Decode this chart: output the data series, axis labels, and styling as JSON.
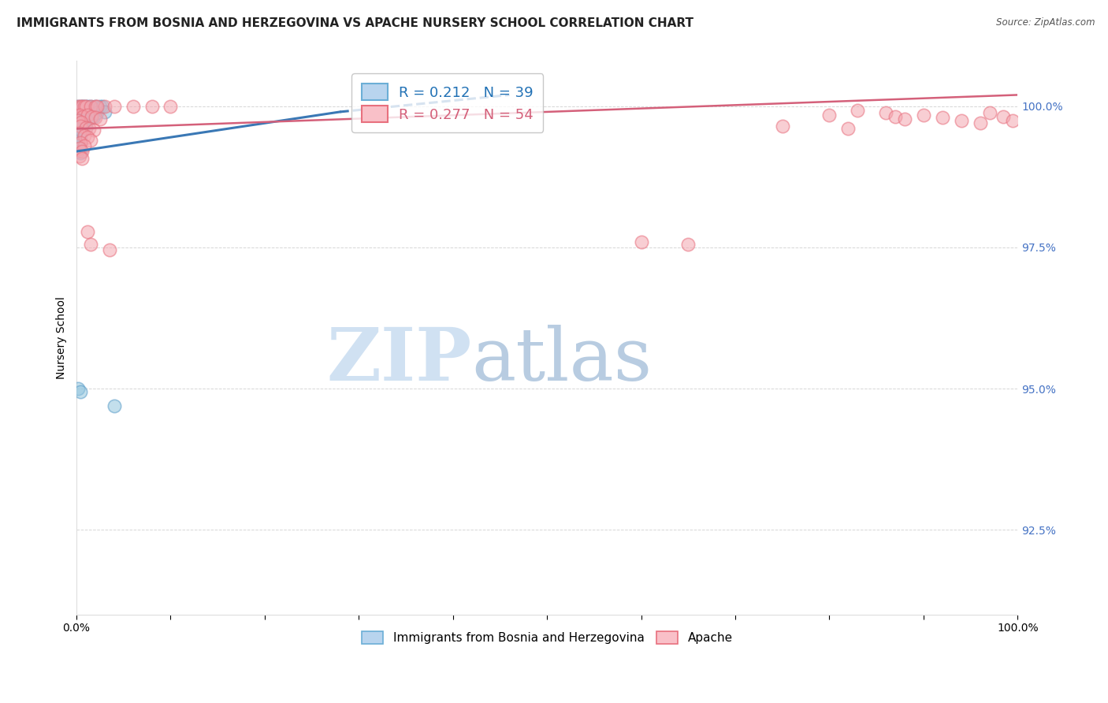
{
  "title": "IMMIGRANTS FROM BOSNIA AND HERZEGOVINA VS APACHE NURSERY SCHOOL CORRELATION CHART",
  "source": "Source: ZipAtlas.com",
  "ylabel": "Nursery School",
  "ytick_labels": [
    "100.0%",
    "97.5%",
    "95.0%",
    "92.5%"
  ],
  "ytick_values": [
    1.0,
    0.975,
    0.95,
    0.925
  ],
  "xlim": [
    0.0,
    1.0
  ],
  "ylim": [
    0.91,
    1.008
  ],
  "legend_blue_r": "0.212",
  "legend_blue_n": "39",
  "legend_pink_r": "0.277",
  "legend_pink_n": "54",
  "blue_color": "#92c5de",
  "pink_color": "#f4a6b0",
  "blue_edge_color": "#5b9dc9",
  "pink_edge_color": "#e8707e",
  "blue_line_color": "#3a78b5",
  "pink_line_color": "#d4607a",
  "blue_line_solid": [
    [
      0.0,
      0.992
    ],
    [
      0.28,
      0.999
    ]
  ],
  "blue_line_dash": [
    [
      0.28,
      0.999
    ],
    [
      0.46,
      1.002
    ]
  ],
  "pink_line": [
    [
      0.0,
      0.996
    ],
    [
      1.0,
      1.002
    ]
  ],
  "blue_scatter": [
    [
      0.002,
      1.0
    ],
    [
      0.005,
      1.0
    ],
    [
      0.007,
      1.0
    ],
    [
      0.009,
      1.0
    ],
    [
      0.012,
      1.0
    ],
    [
      0.015,
      1.0
    ],
    [
      0.02,
      1.0
    ],
    [
      0.025,
      1.0
    ],
    [
      0.028,
      1.0
    ],
    [
      0.005,
      0.9985
    ],
    [
      0.008,
      0.9982
    ],
    [
      0.01,
      0.9985
    ],
    [
      0.013,
      0.9978
    ],
    [
      0.016,
      0.998
    ],
    [
      0.018,
      0.9982
    ],
    [
      0.002,
      0.9975
    ],
    [
      0.005,
      0.9972
    ],
    [
      0.007,
      0.9975
    ],
    [
      0.002,
      0.9968
    ],
    [
      0.004,
      0.9965
    ],
    [
      0.006,
      0.9968
    ],
    [
      0.008,
      0.9965
    ],
    [
      0.01,
      0.9962
    ],
    [
      0.002,
      0.9958
    ],
    [
      0.004,
      0.9955
    ],
    [
      0.007,
      0.9958
    ],
    [
      0.002,
      0.9948
    ],
    [
      0.004,
      0.9945
    ],
    [
      0.002,
      0.9938
    ],
    [
      0.004,
      0.9935
    ],
    [
      0.002,
      0.992
    ],
    [
      0.004,
      0.9918
    ],
    [
      0.002,
      0.95
    ],
    [
      0.004,
      0.9495
    ],
    [
      0.04,
      0.947
    ],
    [
      0.002,
      0.996
    ],
    [
      0.006,
      0.9955
    ],
    [
      0.022,
      0.9988
    ],
    [
      0.03,
      0.999
    ]
  ],
  "pink_scatter": [
    [
      0.002,
      1.0
    ],
    [
      0.004,
      1.0
    ],
    [
      0.006,
      1.0
    ],
    [
      0.008,
      1.0
    ],
    [
      0.01,
      1.0
    ],
    [
      0.015,
      1.0
    ],
    [
      0.02,
      1.0
    ],
    [
      0.03,
      1.0
    ],
    [
      0.04,
      1.0
    ],
    [
      0.06,
      1.0
    ],
    [
      0.08,
      1.0
    ],
    [
      0.1,
      1.0
    ],
    [
      0.022,
      1.0
    ],
    [
      0.003,
      0.9985
    ],
    [
      0.007,
      0.9982
    ],
    [
      0.012,
      0.9985
    ],
    [
      0.016,
      0.9982
    ],
    [
      0.02,
      0.998
    ],
    [
      0.002,
      0.9975
    ],
    [
      0.005,
      0.9972
    ],
    [
      0.025,
      0.9978
    ],
    [
      0.004,
      0.9965
    ],
    [
      0.01,
      0.9962
    ],
    [
      0.013,
      0.996
    ],
    [
      0.018,
      0.9958
    ],
    [
      0.003,
      0.9952
    ],
    [
      0.008,
      0.9948
    ],
    [
      0.012,
      0.9945
    ],
    [
      0.015,
      0.994
    ],
    [
      0.004,
      0.9935
    ],
    [
      0.008,
      0.993
    ],
    [
      0.003,
      0.9925
    ],
    [
      0.006,
      0.992
    ],
    [
      0.003,
      0.9912
    ],
    [
      0.006,
      0.9908
    ],
    [
      0.012,
      0.9778
    ],
    [
      0.015,
      0.9755
    ],
    [
      0.035,
      0.9745
    ],
    [
      0.6,
      0.976
    ],
    [
      0.65,
      0.9755
    ],
    [
      0.8,
      0.9985
    ],
    [
      0.83,
      0.9992
    ],
    [
      0.86,
      0.9988
    ],
    [
      0.87,
      0.9982
    ],
    [
      0.88,
      0.9978
    ],
    [
      0.9,
      0.9985
    ],
    [
      0.92,
      0.998
    ],
    [
      0.94,
      0.9975
    ],
    [
      0.96,
      0.997
    ],
    [
      0.97,
      0.9988
    ],
    [
      0.985,
      0.9982
    ],
    [
      0.995,
      0.9975
    ],
    [
      0.75,
      0.9965
    ],
    [
      0.82,
      0.996
    ]
  ],
  "background_color": "#ffffff",
  "grid_color": "#cccccc",
  "title_fontsize": 11,
  "axis_label_fontsize": 10,
  "tick_fontsize": 10
}
